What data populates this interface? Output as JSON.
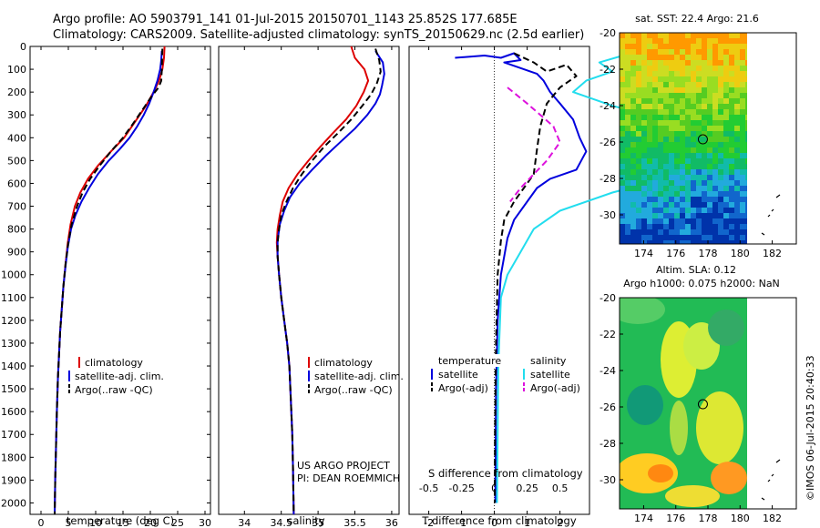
{
  "header": {
    "line1": "Argo profile: AO 5903791_141 01-Jul-2015 20150701_1143 25.852S 177.685E",
    "line2": "Climatology: CARS2009. Satellite-adjusted climatology: synTS_20150629.nc (2.5d earlier)"
  },
  "annotations": {
    "project": "US ARGO PROJECT",
    "pi": "PI: DEAN ROEMMICH",
    "copyright": "©IMOS 06-Jul-2015 20:40:33"
  },
  "colors": {
    "climatology": "#dd0000",
    "satellite": "#0000dd",
    "argo": "#000000",
    "s_satellite": "#22ddee",
    "s_argo": "#dd11dd"
  },
  "chart_data": [
    {
      "type": "line",
      "id": "temperature",
      "xlabel": "temperature (deg C)",
      "xlim": [
        -2,
        31
      ],
      "ylim": [
        2050,
        0
      ],
      "xticks": [
        0,
        5,
        10,
        15,
        20,
        25,
        30
      ],
      "yticks": [
        0,
        100,
        200,
        300,
        400,
        500,
        600,
        700,
        800,
        900,
        1000,
        1100,
        1200,
        1300,
        1400,
        1500,
        1600,
        1700,
        1800,
        1900,
        2000
      ],
      "legend": [
        "climatology",
        "satellite-adj. clim.",
        "Argo(..raw -QC)"
      ],
      "series": [
        {
          "name": "climatology",
          "style": "solid",
          "points": [
            [
              22.6,
              0
            ],
            [
              22.5,
              50
            ],
            [
              22.2,
              100
            ],
            [
              21.6,
              150
            ],
            [
              20.6,
              200
            ],
            [
              19.2,
              260
            ],
            [
              17.5,
              320
            ],
            [
              15.2,
              400
            ],
            [
              12.8,
              460
            ],
            [
              10.5,
              520
            ],
            [
              8.6,
              580
            ],
            [
              7.2,
              640
            ],
            [
              6.2,
              700
            ],
            [
              5.4,
              780
            ],
            [
              4.9,
              860
            ],
            [
              4.5,
              950
            ],
            [
              4.1,
              1050
            ],
            [
              3.8,
              1150
            ],
            [
              3.5,
              1250
            ],
            [
              3.3,
              1350
            ],
            [
              3.1,
              1450
            ],
            [
              2.9,
              1600
            ],
            [
              2.75,
              1750
            ],
            [
              2.6,
              1900
            ],
            [
              2.5,
              2050
            ]
          ]
        },
        {
          "name": "satellite-adj. clim.",
          "style": "solid",
          "points": [
            [
              22.1,
              20
            ],
            [
              22.0,
              60
            ],
            [
              21.8,
              100
            ],
            [
              21.3,
              150
            ],
            [
              20.6,
              200
            ],
            [
              19.8,
              250
            ],
            [
              18.8,
              300
            ],
            [
              17.6,
              350
            ],
            [
              16.2,
              400
            ],
            [
              14.4,
              450
            ],
            [
              12.4,
              500
            ],
            [
              10.4,
              560
            ],
            [
              8.8,
              620
            ],
            [
              7.4,
              680
            ],
            [
              6.3,
              740
            ],
            [
              5.5,
              800
            ],
            [
              4.9,
              880
            ],
            [
              4.5,
              960
            ],
            [
              4.1,
              1050
            ],
            [
              3.8,
              1150
            ],
            [
              3.5,
              1250
            ],
            [
              3.3,
              1350
            ],
            [
              3.1,
              1450
            ],
            [
              2.9,
              1600
            ],
            [
              2.75,
              1750
            ],
            [
              2.6,
              1900
            ],
            [
              2.5,
              2050
            ]
          ]
        },
        {
          "name": "Argo(..raw -QC)",
          "style": "dashed",
          "points": [
            [
              22.2,
              10
            ],
            [
              22.1,
              100
            ],
            [
              22.0,
              150
            ],
            [
              21.5,
              180
            ],
            [
              20.2,
              220
            ],
            [
              18.5,
              280
            ],
            [
              16.8,
              340
            ],
            [
              15.0,
              400
            ],
            [
              12.8,
              460
            ],
            [
              10.8,
              520
            ],
            [
              9.0,
              580
            ],
            [
              7.6,
              640
            ],
            [
              6.6,
              700
            ],
            [
              5.6,
              780
            ],
            [
              5.0,
              860
            ],
            [
              4.5,
              950
            ],
            [
              4.1,
              1050
            ],
            [
              3.8,
              1150
            ],
            [
              3.5,
              1250
            ],
            [
              3.3,
              1350
            ],
            [
              3.1,
              1450
            ],
            [
              2.9,
              1600
            ],
            [
              2.75,
              1750
            ],
            [
              2.6,
              1900
            ],
            [
              2.5,
              2050
            ]
          ]
        }
      ]
    },
    {
      "type": "line",
      "id": "salinity",
      "xlabel": "salinity",
      "xlim": [
        33.65,
        36.1
      ],
      "ylim": [
        2050,
        0
      ],
      "xticks": [
        34,
        34.5,
        35,
        35.5,
        36
      ],
      "xticklabels": [
        "34",
        "34.5",
        "35",
        "35.5",
        "36"
      ],
      "legend": [
        "climatology",
        "satellite-adj. clim.",
        "Argo(..raw -QC)"
      ],
      "series": [
        {
          "name": "climatology",
          "style": "solid",
          "points": [
            [
              35.45,
              0
            ],
            [
              35.5,
              50
            ],
            [
              35.63,
              100
            ],
            [
              35.68,
              150
            ],
            [
              35.62,
              200
            ],
            [
              35.52,
              260
            ],
            [
              35.38,
              320
            ],
            [
              35.2,
              380
            ],
            [
              35.03,
              440
            ],
            [
              34.87,
              500
            ],
            [
              34.72,
              560
            ],
            [
              34.6,
              620
            ],
            [
              34.52,
              680
            ],
            [
              34.48,
              740
            ],
            [
              34.45,
              800
            ],
            [
              34.44,
              860
            ],
            [
              34.45,
              920
            ],
            [
              34.47,
              1000
            ],
            [
              34.5,
              1100
            ],
            [
              34.54,
              1200
            ],
            [
              34.58,
              1300
            ],
            [
              34.61,
              1400
            ],
            [
              34.63,
              1550
            ],
            [
              34.65,
              1700
            ],
            [
              34.66,
              1850
            ],
            [
              34.67,
              2050
            ]
          ]
        },
        {
          "name": "satellite-adj. clim.",
          "style": "solid",
          "points": [
            [
              35.78,
              20
            ],
            [
              35.88,
              70
            ],
            [
              35.9,
              120
            ],
            [
              35.87,
              170
            ],
            [
              35.84,
              210
            ],
            [
              35.78,
              250
            ],
            [
              35.67,
              300
            ],
            [
              35.5,
              360
            ],
            [
              35.3,
              420
            ],
            [
              35.1,
              480
            ],
            [
              34.92,
              540
            ],
            [
              34.75,
              600
            ],
            [
              34.62,
              660
            ],
            [
              34.54,
              720
            ],
            [
              34.48,
              780
            ],
            [
              34.45,
              850
            ],
            [
              34.45,
              920
            ],
            [
              34.47,
              1000
            ],
            [
              34.5,
              1100
            ],
            [
              34.54,
              1200
            ],
            [
              34.58,
              1300
            ],
            [
              34.61,
              1400
            ],
            [
              34.63,
              1550
            ],
            [
              34.65,
              1700
            ],
            [
              34.66,
              1850
            ],
            [
              34.67,
              2050
            ]
          ]
        },
        {
          "name": "Argo(..raw -QC)",
          "style": "dashed",
          "points": [
            [
              35.78,
              10
            ],
            [
              35.83,
              60
            ],
            [
              35.85,
              110
            ],
            [
              35.8,
              160
            ],
            [
              35.72,
              210
            ],
            [
              35.6,
              260
            ],
            [
              35.45,
              320
            ],
            [
              35.27,
              380
            ],
            [
              35.08,
              440
            ],
            [
              34.92,
              500
            ],
            [
              34.78,
              560
            ],
            [
              34.66,
              620
            ],
            [
              34.57,
              680
            ],
            [
              34.5,
              740
            ],
            [
              34.47,
              800
            ],
            [
              34.45,
              860
            ],
            [
              34.45,
              920
            ],
            [
              34.47,
              1000
            ],
            [
              34.5,
              1100
            ],
            [
              34.54,
              1200
            ],
            [
              34.58,
              1300
            ],
            [
              34.61,
              1400
            ],
            [
              34.63,
              1550
            ],
            [
              34.65,
              1700
            ],
            [
              34.66,
              1850
            ],
            [
              34.67,
              2050
            ]
          ]
        }
      ]
    },
    {
      "type": "line",
      "id": "difference",
      "xlabel": "T difference from climatology",
      "xlabel_top": "S difference from climatology",
      "xlim": [
        -2.6,
        2.9
      ],
      "ylim": [
        2050,
        0
      ],
      "xticks": [
        -2,
        -1,
        0,
        1,
        2
      ],
      "s_ticks": [
        -0.5,
        -0.25,
        0,
        0.25,
        0.5
      ],
      "s_ticklabels": [
        "-0.5",
        "-0.25",
        "0",
        "0.25",
        "0.5"
      ],
      "legend_titles": [
        "temperature",
        "salinity"
      ],
      "legend": [
        "satellite",
        "Argo(-adj)",
        "satellite",
        "Argo(-adj)"
      ],
      "series": [
        {
          "name": "satellite",
          "group": "temperature",
          "style": "solid",
          "points": [
            [
              -1.2,
              50
            ],
            [
              -0.3,
              40
            ],
            [
              0.2,
              50
            ],
            [
              0.6,
              30
            ],
            [
              0.8,
              60
            ],
            [
              0.3,
              70
            ],
            [
              0.9,
              100
            ],
            [
              1.3,
              120
            ],
            [
              1.5,
              150
            ],
            [
              1.7,
              200
            ],
            [
              2.0,
              250
            ],
            [
              2.4,
              320
            ],
            [
              2.6,
              400
            ],
            [
              2.8,
              460
            ],
            [
              2.5,
              540
            ],
            [
              1.7,
              580
            ],
            [
              1.3,
              620
            ],
            [
              1.0,
              680
            ],
            [
              0.6,
              760
            ],
            [
              0.4,
              840
            ],
            [
              0.3,
              920
            ],
            [
              0.2,
              1000
            ],
            [
              0.1,
              1200
            ],
            [
              0.05,
              1500
            ],
            [
              0.03,
              2000
            ]
          ]
        },
        {
          "name": "Argo(-adj)",
          "group": "temperature",
          "style": "dashed",
          "points": [
            [
              0.6,
              30
            ],
            [
              1.2,
              70
            ],
            [
              1.6,
              110
            ],
            [
              2.2,
              80
            ],
            [
              2.5,
              130
            ],
            [
              2.0,
              180
            ],
            [
              1.6,
              250
            ],
            [
              1.4,
              350
            ],
            [
              1.3,
              450
            ],
            [
              1.2,
              560
            ],
            [
              0.9,
              620
            ],
            [
              0.6,
              680
            ],
            [
              0.3,
              760
            ],
            [
              0.2,
              850
            ],
            [
              0.1,
              1000
            ],
            [
              0.05,
              1300
            ],
            [
              0.02,
              1700
            ],
            [
              0.01,
              2000
            ]
          ]
        },
        {
          "name": "satellite",
          "group": "salinity",
          "style": "solid",
          "points": [
            [
              1.1,
              20
            ],
            [
              0.8,
              70
            ],
            [
              0.9,
              110
            ],
            [
              0.7,
              150
            ],
            [
              0.6,
              200
            ],
            [
              0.9,
              260
            ],
            [
              1.3,
              320
            ],
            [
              1.6,
              380
            ],
            [
              1.7,
              440
            ],
            [
              1.6,
              520
            ],
            [
              1.3,
              580
            ],
            [
              0.9,
              640
            ],
            [
              0.5,
              720
            ],
            [
              0.3,
              800
            ],
            [
              0.2,
              900
            ],
            [
              0.1,
              1000
            ],
            [
              0.05,
              1100
            ],
            [
              0.03,
              1400
            ],
            [
              0.02,
              2000
            ]
          ]
        },
        {
          "name": "Argo(-adj)",
          "group": "salinity",
          "style": "dashed",
          "points": [
            [
              0.1,
              180
            ],
            [
              0.25,
              250
            ],
            [
              0.45,
              350
            ],
            [
              0.5,
              420
            ],
            [
              0.4,
              500
            ],
            [
              0.3,
              560
            ],
            [
              0.2,
              620
            ],
            [
              0.12,
              680
            ]
          ]
        }
      ]
    },
    {
      "type": "heatmap",
      "id": "sst-map",
      "title": "sat. SST: 22.4  Argo: 21.6",
      "xlim": [
        172.5,
        183.5
      ],
      "ylim": [
        -31.6,
        -20
      ],
      "xticks": [
        174,
        176,
        178,
        180,
        182
      ],
      "yticks": [
        -20,
        -22,
        -24,
        -26,
        -28,
        -30
      ],
      "marker": [
        177.685,
        -25.852
      ]
    },
    {
      "type": "heatmap",
      "id": "sla-map",
      "title": "Altim. SLA: 0.12",
      "subtitle": "Argo h1000: 0.075  h2000: NaN",
      "xlim": [
        172.5,
        183.5
      ],
      "ylim": [
        -31.6,
        -20
      ],
      "xticks": [
        174,
        176,
        178,
        180,
        182
      ],
      "yticks": [
        -20,
        -22,
        -24,
        -26,
        -28,
        -30
      ],
      "marker": [
        177.685,
        -25.852
      ]
    }
  ]
}
